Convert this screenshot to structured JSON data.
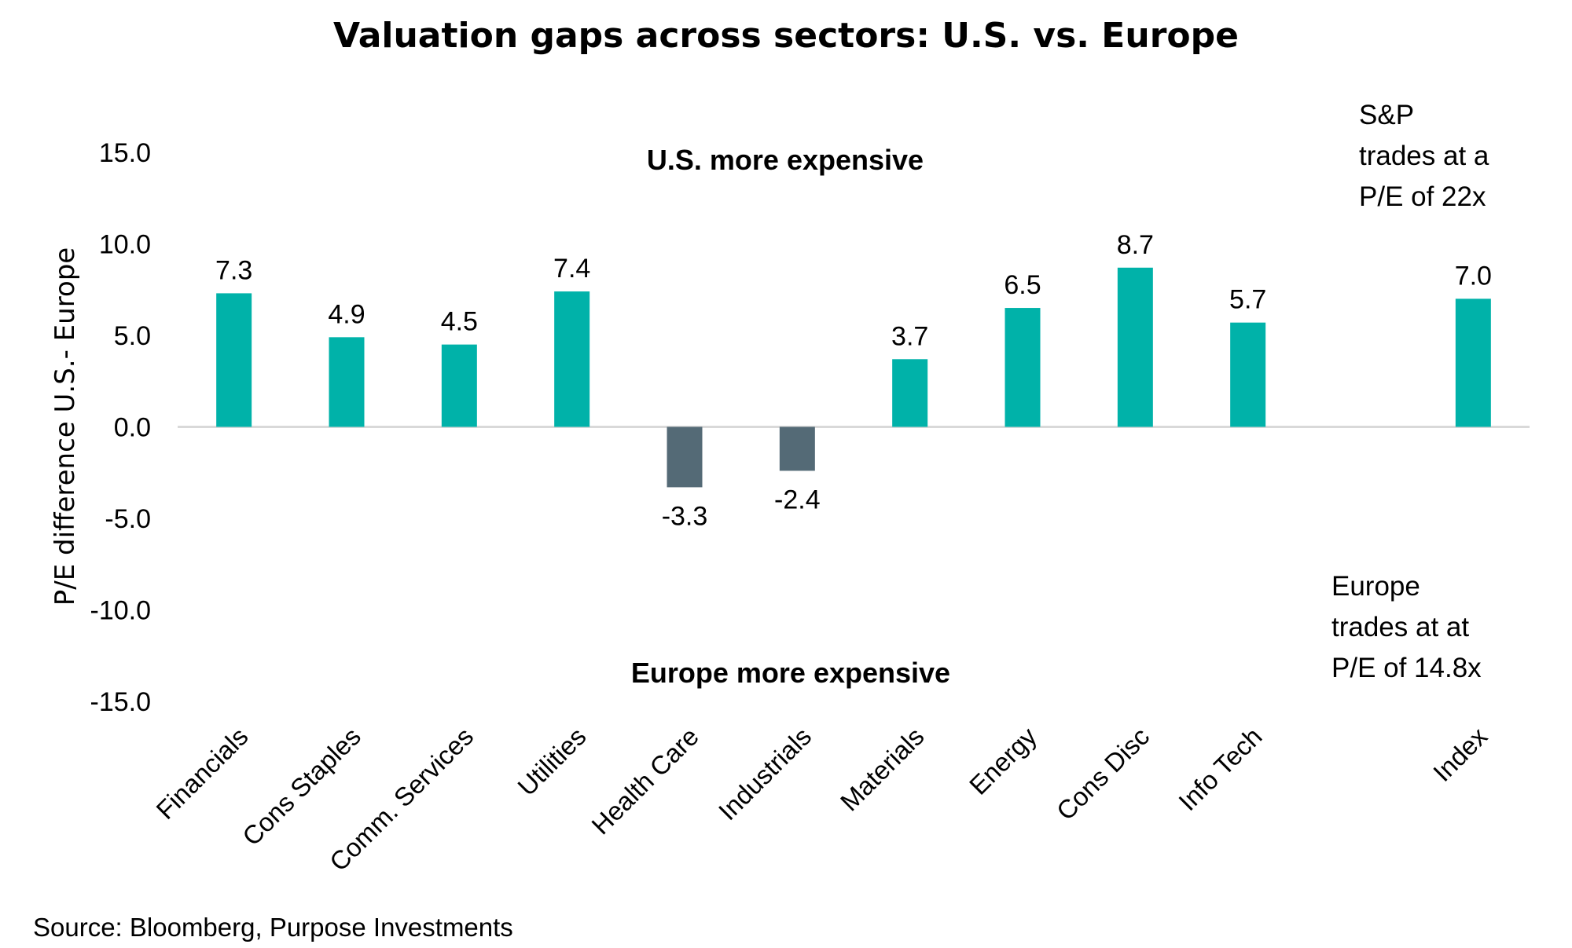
{
  "chart_data": {
    "type": "bar",
    "title": "Valuation gaps across sectors: U.S. vs. Europe",
    "xlabel": "",
    "ylabel": "P/E difference U.S.- Europe",
    "ylim": [
      -15,
      15
    ],
    "yticks": [
      15,
      10,
      5,
      0,
      -5,
      -10,
      -15
    ],
    "ytick_labels": [
      "15.0",
      "10.0",
      "5.0",
      "0.0",
      "-5.0",
      "-10.0",
      "-15.0"
    ],
    "categories": [
      "Financials",
      "Cons Staples",
      "Comm. Services",
      "Utilities",
      "Health Care",
      "Industrials",
      "Materials",
      "Energy",
      "Cons Disc",
      "Info Tech",
      "",
      "Index"
    ],
    "values": [
      7.3,
      4.9,
      4.5,
      7.4,
      -3.3,
      -2.4,
      3.7,
      6.5,
      8.7,
      5.7,
      null,
      7.0
    ],
    "data_labels": [
      "7.3",
      "4.9",
      "4.5",
      "7.4",
      "-3.3",
      "-2.4",
      "3.7",
      "6.5",
      "8.7",
      "5.7",
      "",
      "7.0"
    ],
    "colors": {
      "positive": "#00B2A9",
      "negative": "#546A76",
      "zero_line": "#D9D9D9"
    },
    "grid": false,
    "legend": "none",
    "annotations": {
      "top": "U.S. more expensive",
      "bottom": "Europe more expensive",
      "sp_note": [
        "S&P",
        "trades at a",
        "P/E of 22x"
      ],
      "europe_note": [
        "Europe",
        "trades at at",
        "P/E of 14.8x"
      ]
    },
    "source": "Source: Bloomberg, Purpose Investments"
  }
}
